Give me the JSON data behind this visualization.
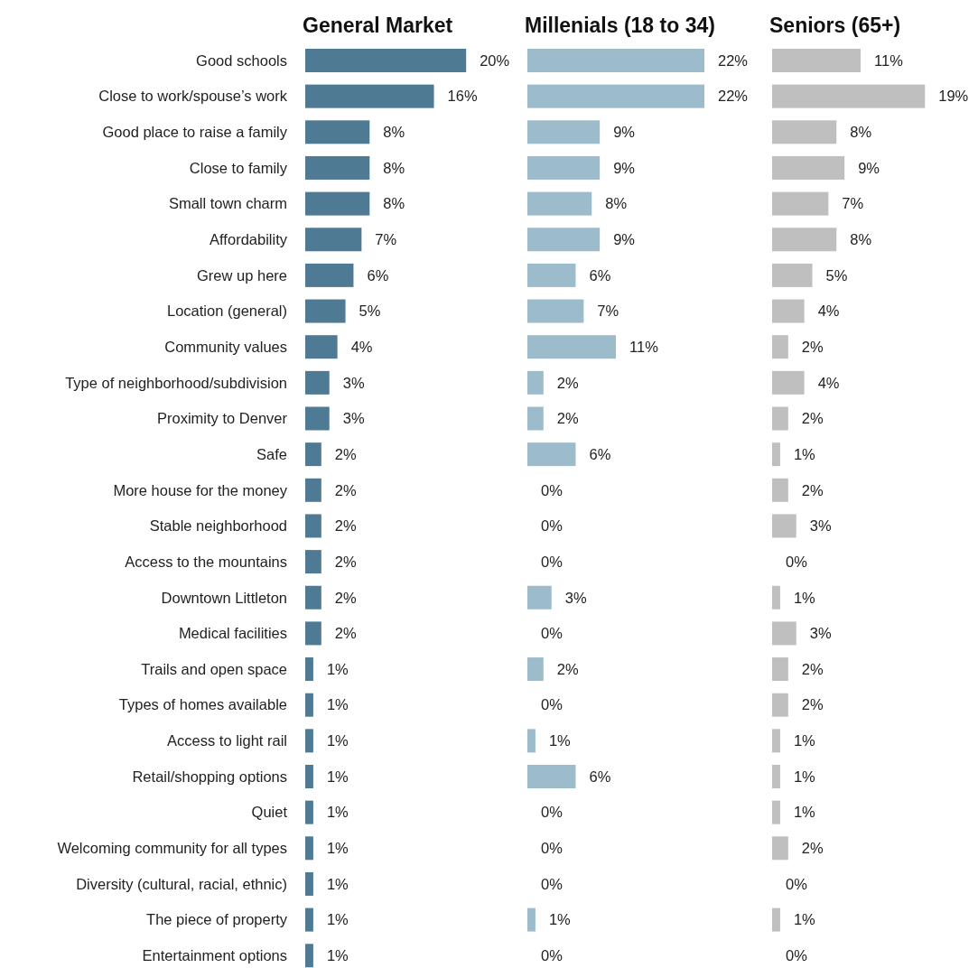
{
  "chart_data": [
    {
      "type": "bar",
      "orientation": "horizontal",
      "title": "General Market",
      "tick_labels": "y",
      "data_labels": true,
      "color": "#4f7a93",
      "categories": [
        "Good schools",
        "Close to work/spouse’s work",
        "Good place to raise a family",
        "Close to family",
        "Small town charm",
        "Affordability",
        "Grew up here",
        "Location (general)",
        "Community values",
        "Type of neighborhood/subdivision",
        "Proximity to Denver",
        "Safe",
        "More house for the money",
        "Stable neighborhood",
        "Access to the mountains",
        "Downtown Littleton",
        "Medical facilities",
        "Trails and open space",
        "Types of homes available",
        "Access to light rail",
        "Retail/shopping options",
        "Quiet",
        "Welcoming community for all types",
        "Diversity (cultural, racial, ethnic)",
        "The piece of property",
        "Entertainment options"
      ],
      "values": [
        20,
        16,
        8,
        8,
        8,
        7,
        6,
        5,
        4,
        3,
        3,
        2,
        2,
        2,
        2,
        2,
        2,
        1,
        1,
        1,
        1,
        1,
        1,
        1,
        1,
        1
      ],
      "value_labels": [
        "20%",
        "16%",
        "8%",
        "8%",
        "8%",
        "7%",
        "6%",
        "5%",
        "4%",
        "3%",
        "3%",
        "2%",
        "2%",
        "2%",
        "2%",
        "2%",
        "2%",
        "1%",
        "1%",
        "1%",
        "1%",
        "1%",
        "1%",
        "1%",
        "1%",
        "1%"
      ]
    },
    {
      "type": "bar",
      "orientation": "horizontal",
      "title": "Millenials (18 to 34)",
      "tick_labels": false,
      "data_labels": true,
      "color": "#9dbccb",
      "categories": [
        null,
        null,
        null,
        null,
        null,
        null,
        null,
        null,
        null,
        null,
        null,
        null,
        null,
        null,
        null,
        null,
        null,
        null,
        null,
        null,
        null,
        null,
        null,
        null,
        null,
        null
      ],
      "values": [
        22,
        22,
        9,
        9,
        8,
        9,
        6,
        7,
        11,
        2,
        2,
        6,
        0,
        0,
        0,
        3,
        0,
        2,
        0,
        1,
        6,
        0,
        0,
        0,
        1,
        0
      ],
      "value_labels": [
        "22%",
        "22%",
        "9%",
        "9%",
        "8%",
        "9%",
        "6%",
        "7%",
        "11%",
        "2%",
        "2%",
        "6%",
        "0%",
        "0%",
        "0%",
        "3%",
        "0%",
        "2%",
        "0%",
        "1%",
        "6%",
        "0%",
        "0%",
        "0%",
        "1%",
        "0%"
      ]
    },
    {
      "type": "bar",
      "orientation": "horizontal",
      "title": "Seniors (65+)",
      "tick_labels": false,
      "data_labels": true,
      "color": "#bfbfbf",
      "categories": [
        null,
        null,
        null,
        null,
        null,
        null,
        null,
        null,
        null,
        null,
        null,
        null,
        null,
        null,
        null,
        null,
        null,
        null,
        null,
        null,
        null,
        null,
        null,
        null,
        null,
        null
      ],
      "values": [
        11,
        19,
        8,
        9,
        7,
        8,
        5,
        4,
        2,
        4,
        2,
        1,
        2,
        3,
        0,
        1,
        3,
        2,
        2,
        1,
        1,
        1,
        2,
        0,
        1,
        0
      ],
      "value_labels": [
        "11%",
        "19%",
        "8%",
        "9%",
        "7%",
        "8%",
        "5%",
        "4%",
        "2%",
        "4%",
        "2%",
        "1%",
        "2%",
        "3%",
        "0%",
        "1%",
        "3%",
        "2%",
        "2%",
        "1%",
        "1%",
        "1%",
        "2%",
        "0%",
        "1%",
        "0%"
      ]
    }
  ]
}
